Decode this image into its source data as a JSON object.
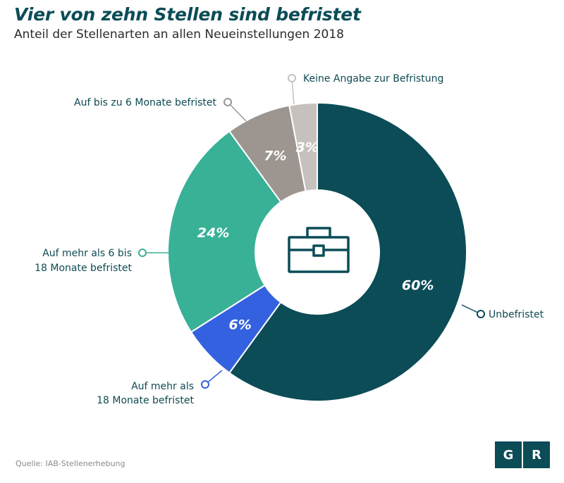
{
  "header": {
    "title": "Vier von zehn Stellen sind befristet",
    "subtitle": "Anteil der Stellenarten an allen Neueinstellungen 2018"
  },
  "chart_data": {
    "type": "pie",
    "donut": true,
    "title": "Vier von zehn Stellen sind befristet",
    "subtitle": "Anteil der Stellenarten an allen Neueinstellungen 2018",
    "slices": [
      {
        "label": "Unbefristet",
        "value": 60,
        "value_label": "60%",
        "color": "#0b4c57"
      },
      {
        "label": "Auf mehr als 18 Monate befristet",
        "label_lines": [
          "Auf mehr als",
          "18 Monate befristet"
        ],
        "value": 6,
        "value_label": "6%",
        "color": "#3461df"
      },
      {
        "label": "Auf mehr als 6 bis 18 Monate befristet",
        "label_lines": [
          "Auf mehr als 6 bis",
          "18 Monate befristet"
        ],
        "value": 24,
        "value_label": "24%",
        "color": "#38b196"
      },
      {
        "label": "Auf bis zu 6 Monate befristet",
        "label_lines": [
          "Auf bis zu 6 Monate befristet"
        ],
        "value": 7,
        "value_label": "7%",
        "color": "#9c9590"
      },
      {
        "label": "Keine Angabe zur Befristung",
        "label_lines": [
          "Keine Angabe zur Befristung"
        ],
        "value": 3,
        "value_label": "3%",
        "color": "#c6c1bd"
      }
    ],
    "center_icon": "briefcase-icon"
  },
  "footer": {
    "source": "Quelle: IAB-Stellenerhebung",
    "logo_letters": [
      "G",
      "R"
    ]
  }
}
